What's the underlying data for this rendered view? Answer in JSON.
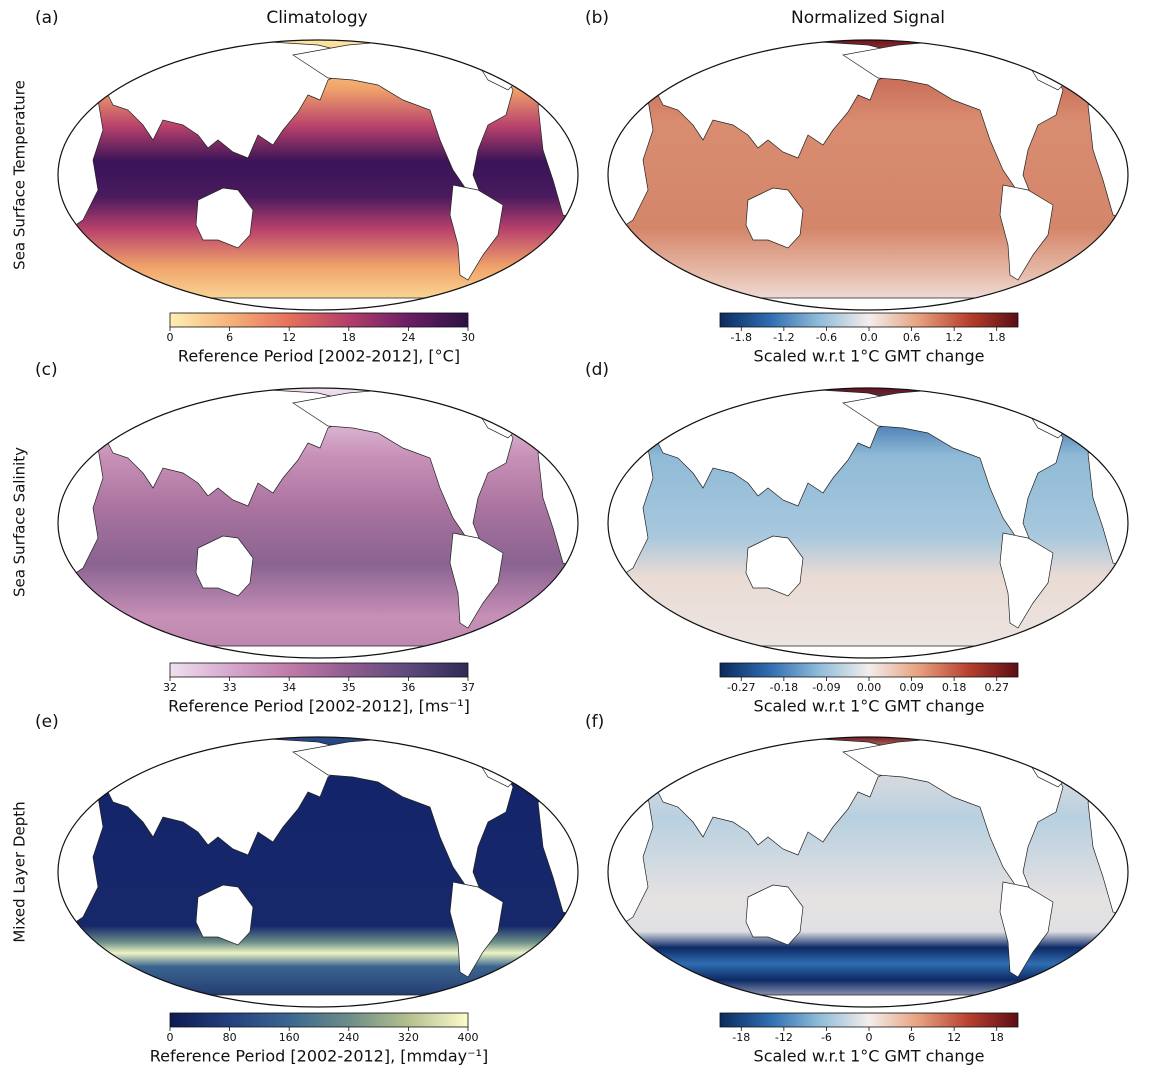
{
  "column_titles": [
    "Climatology",
    "Normalized Signal"
  ],
  "row_labels": [
    "Sea Surface Temperature",
    "Sea Surface Salinity",
    "Mixed Layer Depth"
  ],
  "panels": [
    {
      "label": "(a)",
      "colorbar": {
        "label": "Reference Period [2002-2012], [°C]",
        "lim": [
          0,
          30
        ],
        "ticks": [
          0,
          6,
          12,
          18,
          24,
          30
        ],
        "colors": [
          "#fdf0b2",
          "#f6b27a",
          "#e5705c",
          "#b33e6a",
          "#6a1f66",
          "#2b1244"
        ]
      }
    },
    {
      "label": "(b)",
      "colorbar": {
        "label": "Scaled w.r.t 1°C GMT change",
        "lim": [
          -2.1,
          2.1
        ],
        "ticks": [
          -1.8,
          -1.2,
          -0.6,
          {
            "value": 0,
            "label": "0.0"
          },
          0.6,
          1.2,
          1.8
        ],
        "colors": [
          "#0b2a5e",
          "#2f6db0",
          "#8fbcd9",
          "#f3eeec",
          "#e7a17e",
          "#b8402f",
          "#5c0e14"
        ]
      }
    },
    {
      "label": "(c)",
      "colorbar": {
        "label": "Reference Period [2002-2012], [ms⁻¹]",
        "lim": [
          32,
          37
        ],
        "ticks": [
          32,
          33,
          34,
          35,
          36,
          37
        ],
        "colors": [
          "#efe1ee",
          "#d6a8cf",
          "#c07aa8",
          "#8f5c90",
          "#5e4a7d",
          "#2e2a55"
        ]
      }
    },
    {
      "label": "(d)",
      "colorbar": {
        "label": "Scaled w.r.t 1°C GMT change",
        "lim": [
          -0.315,
          0.315
        ],
        "ticks": [
          -0.27,
          -0.18,
          -0.09,
          {
            "value": 0,
            "label": "0.00"
          },
          0.09,
          0.18,
          0.27
        ],
        "colors": [
          "#0b2a5e",
          "#2f6db0",
          "#8fbcd9",
          "#f3eeec",
          "#e7a17e",
          "#b8402f",
          "#5c0e14"
        ]
      }
    },
    {
      "label": "(e)",
      "colorbar": {
        "label": "Reference Period [2002-2012], [mmday⁻¹]",
        "lim": [
          0,
          400
        ],
        "ticks": [
          0,
          80,
          160,
          240,
          320,
          400
        ],
        "colors": [
          "#0d1a52",
          "#23407e",
          "#3b6690",
          "#6b8e88",
          "#b3c08e",
          "#fdfccb"
        ]
      }
    },
    {
      "label": "(f)",
      "colorbar": {
        "label": "Scaled w.r.t 1°C GMT change",
        "lim": [
          -21,
          21
        ],
        "ticks": [
          -18,
          -12,
          -6,
          0,
          6,
          12,
          18
        ],
        "colors": [
          "#0b2a5e",
          "#2f6db0",
          "#8fbcd9",
          "#f3eeec",
          "#e7a17e",
          "#b8402f",
          "#5c0e14"
        ]
      }
    }
  ]
}
